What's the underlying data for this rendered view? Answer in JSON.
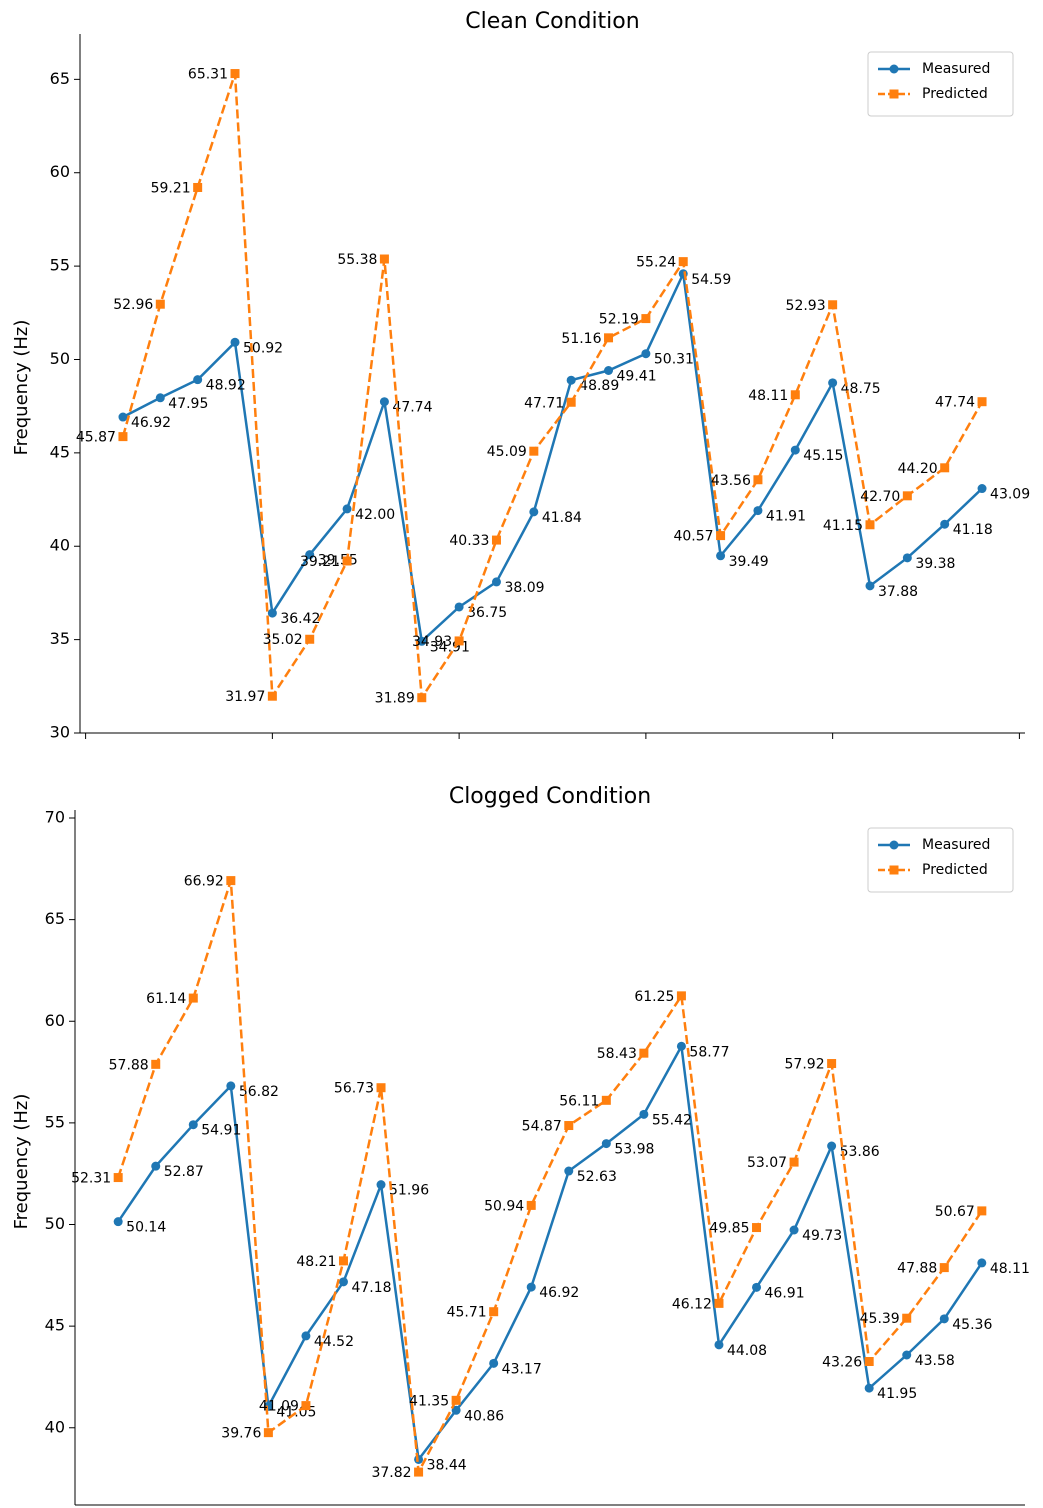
{
  "chart_data": [
    {
      "type": "line",
      "title": "Clean Condition",
      "ylabel": "Frequency (Hz)",
      "legend": "upper right",
      "x": [
        1,
        2,
        3,
        4,
        5,
        6,
        7,
        8,
        9,
        10,
        11,
        12,
        13,
        14,
        15,
        16,
        17,
        18,
        19,
        20,
        21,
        22,
        23,
        24
      ],
      "xlim": [
        -0.15,
        25.15
      ],
      "xticks": [
        0,
        5,
        10,
        15,
        20,
        25
      ],
      "ylim": [
        30,
        67
      ],
      "yticks": [
        30,
        35,
        40,
        45,
        50,
        55,
        60,
        65
      ],
      "series": [
        {
          "name": "Measured",
          "color": "#1f77b4",
          "marker": "circle",
          "linestyle": "solid",
          "values": [
            46.92,
            47.95,
            48.92,
            50.92,
            36.42,
            39.55,
            42.0,
            47.74,
            34.91,
            36.75,
            38.09,
            41.84,
            48.89,
            49.41,
            50.31,
            54.59,
            39.49,
            41.91,
            45.15,
            48.75,
            37.88,
            39.38,
            41.18,
            43.09
          ],
          "value_labels": [
            "46.92",
            "47.95",
            "48.92",
            "50.92",
            "36.42",
            "39.55",
            "42.00",
            "47.74",
            "34.91",
            "36.75",
            "38.09",
            "41.84",
            "48.89",
            "49.41",
            "50.31",
            "54.59",
            "39.49",
            "41.91",
            "45.15",
            "48.75",
            "37.88",
            "39.38",
            "41.18",
            "43.09"
          ]
        },
        {
          "name": "Predicted",
          "color": "#ff7f0e",
          "marker": "square",
          "linestyle": "dashed",
          "values": [
            45.87,
            52.96,
            59.21,
            65.31,
            31.97,
            35.02,
            39.21,
            55.38,
            31.89,
            34.93,
            40.33,
            45.09,
            47.71,
            51.16,
            52.19,
            55.24,
            40.57,
            43.56,
            48.11,
            52.93,
            41.15,
            42.7,
            44.2,
            47.74
          ],
          "value_labels": [
            "45.87",
            "52.96",
            "59.21",
            "65.31",
            "31.97",
            "35.02",
            "39.21",
            "55.38",
            "31.89",
            "34.93",
            "40.33",
            "45.09",
            "47.71",
            "51.16",
            "52.19",
            "55.24",
            "40.57",
            "43.56",
            "48.11",
            "52.93",
            "41.15",
            "42.70",
            "44.20",
            "47.74"
          ]
        }
      ]
    },
    {
      "type": "line",
      "title": "Clogged Condition",
      "ylabel": "Frequency (Hz)",
      "legend": "upper right",
      "x": [
        1,
        2,
        3,
        4,
        5,
        6,
        7,
        8,
        9,
        10,
        11,
        12,
        13,
        14,
        15,
        16,
        17,
        18,
        19,
        20,
        21,
        22,
        23,
        24
      ],
      "xlim": [
        -0.15,
        25.15
      ],
      "ylim": [
        36.2,
        70
      ],
      "yticks": [
        40,
        45,
        50,
        55,
        60,
        65,
        70
      ],
      "series": [
        {
          "name": "Measured",
          "color": "#1f77b4",
          "marker": "circle",
          "linestyle": "solid",
          "values": [
            50.14,
            52.87,
            54.91,
            56.82,
            41.05,
            44.52,
            47.18,
            51.96,
            38.44,
            40.86,
            43.17,
            46.92,
            52.63,
            53.98,
            55.42,
            58.77,
            44.08,
            46.91,
            49.73,
            53.86,
            41.95,
            43.58,
            45.36,
            48.11
          ],
          "value_labels": [
            "50.14",
            "52.87",
            "54.91",
            "56.82",
            "41.05",
            "44.52",
            "47.18",
            "51.96",
            "38.44",
            "40.86",
            "43.17",
            "46.92",
            "52.63",
            "53.98",
            "55.42",
            "58.77",
            "44.08",
            "46.91",
            "49.73",
            "53.86",
            "41.95",
            "43.58",
            "45.36",
            "48.11"
          ]
        },
        {
          "name": "Predicted",
          "color": "#ff7f0e",
          "marker": "square",
          "linestyle": "dashed",
          "values": [
            52.31,
            57.88,
            61.14,
            66.92,
            39.76,
            41.09,
            48.21,
            56.73,
            37.82,
            41.35,
            45.71,
            50.94,
            54.87,
            56.11,
            58.43,
            61.25,
            46.12,
            49.85,
            53.07,
            57.92,
            43.26,
            45.39,
            47.88,
            50.67
          ],
          "value_labels": [
            "52.31",
            "57.88",
            "61.14",
            "66.92",
            "39.76",
            "41.09",
            "48.21",
            "56.73",
            "37.82",
            "41.35",
            "45.71",
            "50.94",
            "54.87",
            "56.11",
            "58.43",
            "61.25",
            "46.12",
            "49.85",
            "53.07",
            "57.92",
            "43.26",
            "45.39",
            "47.88",
            "50.67"
          ]
        }
      ]
    }
  ]
}
